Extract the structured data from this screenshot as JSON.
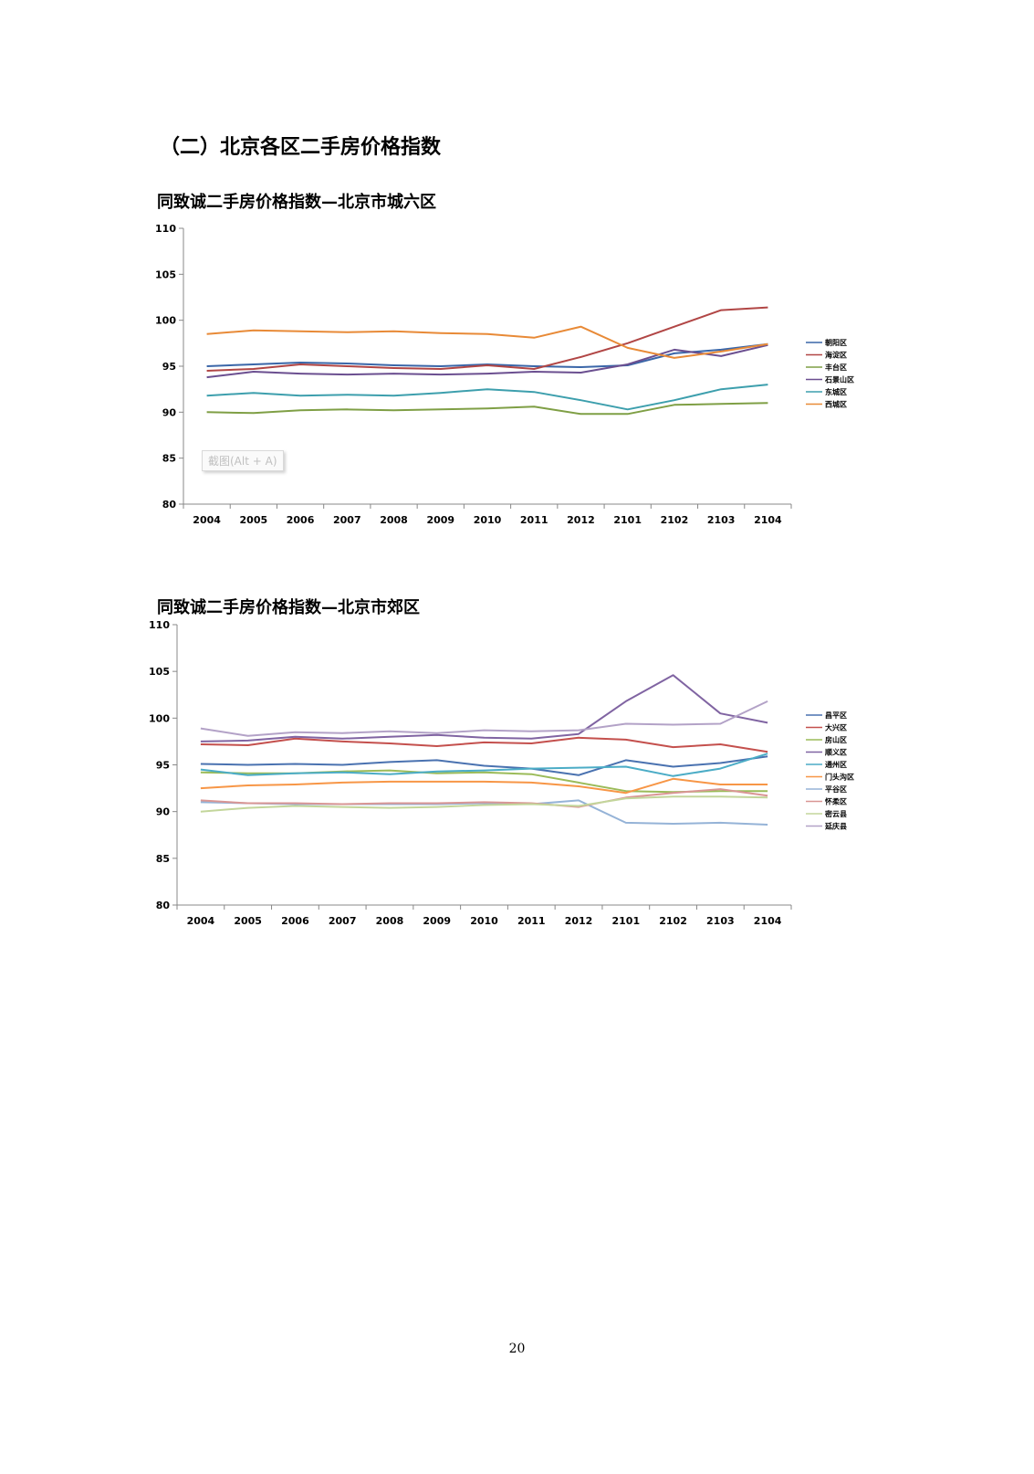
{
  "section_title": "（二）北京各区二手房价格指数",
  "page_number": "20",
  "tooltip_text": "截图(Alt + A)",
  "chart_data": [
    {
      "type": "line",
      "title": "同致诚二手房价格指数—北京市城六区",
      "categories": [
        "2004",
        "2005",
        "2006",
        "2007",
        "2008",
        "2009",
        "2010",
        "2011",
        "2012",
        "2101",
        "2102",
        "2103",
        "2104"
      ],
      "ylim": [
        80,
        110
      ],
      "yticks": [
        "80",
        "85",
        "90",
        "95",
        "100",
        "105",
        "110"
      ],
      "grid": false,
      "legend": "right",
      "series": [
        {
          "name": "朝阳区",
          "color": "#3a66a8",
          "values": [
            95.0,
            95.2,
            95.4,
            95.3,
            95.1,
            95.0,
            95.2,
            95.0,
            94.9,
            95.1,
            96.4,
            96.8,
            97.4
          ]
        },
        {
          "name": "海淀区",
          "color": "#b14645",
          "values": [
            94.5,
            94.7,
            95.2,
            95.0,
            94.8,
            94.7,
            95.1,
            94.7,
            96.0,
            97.5,
            99.3,
            101.1,
            101.4
          ]
        },
        {
          "name": "丰台区",
          "color": "#7f9f45",
          "values": [
            90.0,
            89.9,
            90.2,
            90.3,
            90.2,
            90.3,
            90.4,
            90.6,
            89.8,
            89.8,
            90.8,
            90.9,
            91.0
          ]
        },
        {
          "name": "石景山区",
          "color": "#6b4f90",
          "values": [
            93.8,
            94.4,
            94.2,
            94.1,
            94.2,
            94.1,
            94.2,
            94.4,
            94.3,
            95.2,
            96.8,
            96.1,
            97.3
          ]
        },
        {
          "name": "东城区",
          "color": "#3d9fad",
          "values": [
            91.8,
            92.1,
            91.8,
            91.9,
            91.8,
            92.1,
            92.5,
            92.2,
            91.3,
            90.3,
            91.3,
            92.5,
            93.0
          ]
        },
        {
          "name": "西城区",
          "color": "#e88a37",
          "values": [
            98.5,
            98.9,
            98.8,
            98.7,
            98.8,
            98.6,
            98.5,
            98.1,
            99.3,
            97.0,
            95.9,
            96.6,
            97.4
          ]
        }
      ]
    },
    {
      "type": "line",
      "title": "同致诚二手房价格指数—北京市郊区",
      "categories": [
        "2004",
        "2005",
        "2006",
        "2007",
        "2008",
        "2009",
        "2010",
        "2011",
        "2012",
        "2101",
        "2102",
        "2103",
        "2104"
      ],
      "ylim": [
        80,
        110
      ],
      "yticks": [
        "80",
        "85",
        "90",
        "95",
        "100",
        "105",
        "110"
      ],
      "grid": false,
      "legend": "right",
      "series": [
        {
          "name": "昌平区",
          "color": "#4a72b0",
          "values": [
            95.1,
            95.0,
            95.1,
            95.0,
            95.3,
            95.5,
            94.9,
            94.6,
            93.9,
            95.5,
            94.8,
            95.2,
            95.9
          ]
        },
        {
          "name": "大兴区",
          "color": "#c4504d",
          "values": [
            97.2,
            97.1,
            97.8,
            97.5,
            97.3,
            97.0,
            97.4,
            97.3,
            97.9,
            97.7,
            96.9,
            97.2,
            96.4
          ]
        },
        {
          "name": "房山区",
          "color": "#9bbb59",
          "values": [
            94.2,
            94.1,
            94.1,
            94.3,
            94.4,
            94.1,
            94.2,
            94.0,
            93.1,
            92.2,
            92.1,
            92.2,
            92.2
          ]
        },
        {
          "name": "顺义区",
          "color": "#8064a2",
          "values": [
            97.5,
            97.6,
            98.0,
            97.8,
            98.0,
            98.2,
            97.9,
            97.8,
            98.3,
            101.8,
            104.6,
            100.5,
            99.5
          ]
        },
        {
          "name": "通州区",
          "color": "#4bacc6",
          "values": [
            94.5,
            93.9,
            94.1,
            94.2,
            94.0,
            94.3,
            94.4,
            94.6,
            94.7,
            94.8,
            93.8,
            94.6,
            96.2
          ]
        },
        {
          "name": "门头沟区",
          "color": "#f79646",
          "values": [
            92.5,
            92.8,
            92.9,
            93.1,
            93.2,
            93.2,
            93.2,
            93.1,
            92.7,
            92.0,
            93.5,
            92.9,
            92.9
          ]
        },
        {
          "name": "平谷区",
          "color": "#95b3d7",
          "values": [
            91.0,
            90.9,
            90.8,
            90.8,
            90.8,
            90.8,
            90.9,
            90.8,
            91.2,
            88.8,
            88.7,
            88.8,
            88.6
          ]
        },
        {
          "name": "怀柔区",
          "color": "#d99694",
          "values": [
            91.2,
            90.9,
            90.9,
            90.8,
            90.9,
            90.9,
            91.0,
            90.9,
            90.5,
            91.5,
            92.0,
            92.4,
            91.7
          ]
        },
        {
          "name": "密云县",
          "color": "#c3d69b",
          "values": [
            90.0,
            90.4,
            90.6,
            90.5,
            90.4,
            90.5,
            90.7,
            90.8,
            90.6,
            91.4,
            91.6,
            91.6,
            91.5
          ]
        },
        {
          "name": "延庆县",
          "color": "#b3a2c7",
          "values": [
            98.9,
            98.1,
            98.5,
            98.4,
            98.6,
            98.4,
            98.7,
            98.6,
            98.7,
            99.4,
            99.3,
            99.4,
            101.8
          ]
        }
      ]
    }
  ]
}
